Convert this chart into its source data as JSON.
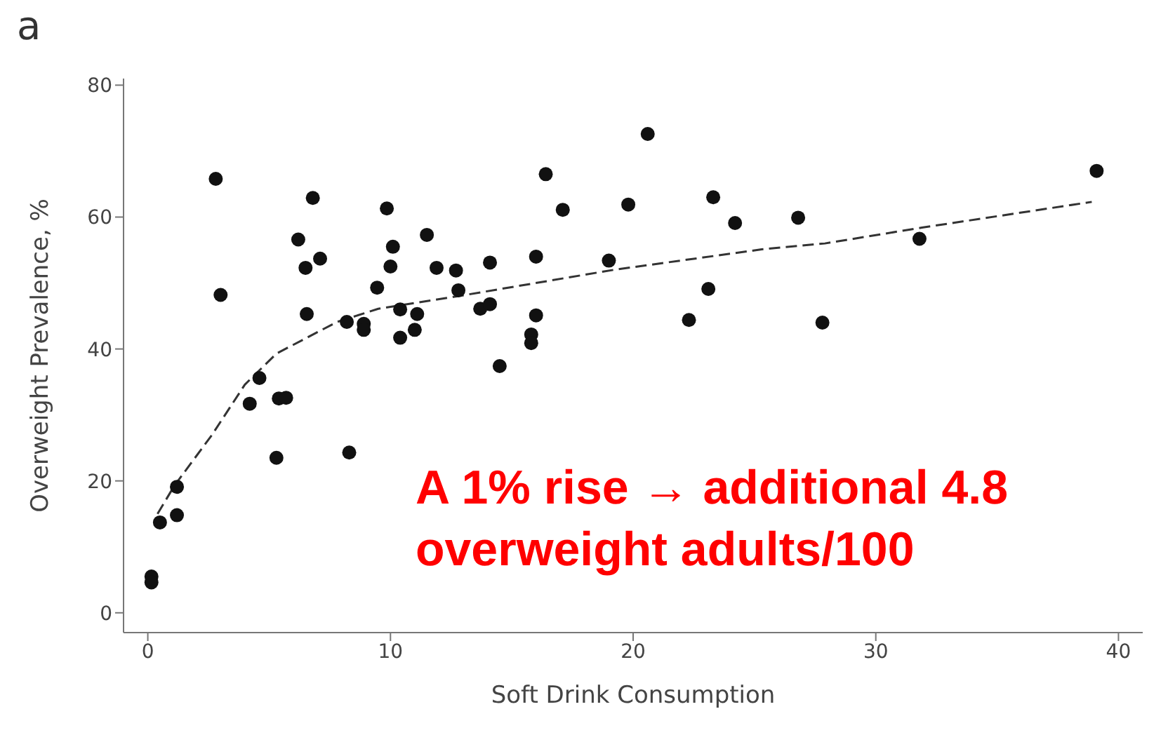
{
  "chart_data": {
    "type": "scatter",
    "title": "a",
    "xlabel": "Soft Drink Consumption",
    "ylabel": "Overweight Prevalence, %",
    "annotations": [
      "A 1% rise → additional 4.8\noverweight adults/100"
    ],
    "xlim": [
      -1,
      41
    ],
    "xticks": [
      0,
      10,
      20,
      30,
      40
    ],
    "ylim": [
      -3,
      81
    ],
    "yticks": [
      0,
      20,
      40,
      60,
      80
    ],
    "marker": "circle",
    "series": [
      {
        "color": "#111111",
        "x": [
          0.15,
          0.15,
          0.5,
          1.2,
          1.2,
          2.8,
          3.0,
          4.2,
          4.6,
          5.3,
          5.4,
          5.7,
          6.2,
          6.5,
          7.1,
          6.55,
          6.8,
          8.3,
          8.2,
          8.9,
          8.9,
          9.45,
          9.85,
          10.1,
          10.0,
          10.4,
          10.4,
          11.1,
          11.0,
          11.5,
          11.9,
          12.7,
          12.8,
          14.1,
          13.7,
          14.1,
          14.5,
          16.4,
          17.1,
          16.0,
          16.0,
          15.8,
          15.8,
          19.0,
          19.8,
          20.6,
          22.3,
          23.1,
          23.3,
          24.2,
          26.8,
          27.8,
          31.8,
          39.1
        ],
        "values": [
          5.5,
          4.6,
          13.7,
          14.8,
          19.1,
          65.8,
          48.2,
          31.7,
          35.6,
          23.5,
          32.5,
          32.6,
          56.6,
          52.3,
          53.7,
          45.3,
          62.9,
          24.3,
          44.1,
          43.8,
          42.9,
          49.3,
          61.3,
          55.5,
          52.5,
          46.0,
          41.7,
          45.3,
          42.9,
          57.3,
          52.3,
          51.9,
          48.9,
          53.1,
          46.1,
          46.8,
          37.4,
          66.5,
          61.1,
          54.0,
          45.1,
          42.2,
          40.9,
          53.4,
          61.9,
          72.6,
          44.4,
          49.1,
          63.0,
          59.1,
          59.9,
          44.0,
          56.7,
          67.0
        ]
      },
      {
        "type": "line",
        "color": "#333333",
        "line_style": "dashed",
        "marker": "none",
        "x": [
          0.4,
          1.1,
          2.65,
          4,
          5.3,
          7.8,
          9.5,
          13.1,
          19.2,
          25.3,
          27.9,
          31.9,
          38.9
        ],
        "values": [
          15,
          19.3,
          27,
          34.6,
          39.3,
          44.1,
          46.1,
          48.2,
          52,
          55.1,
          56,
          58.4,
          62.3
        ]
      }
    ]
  }
}
